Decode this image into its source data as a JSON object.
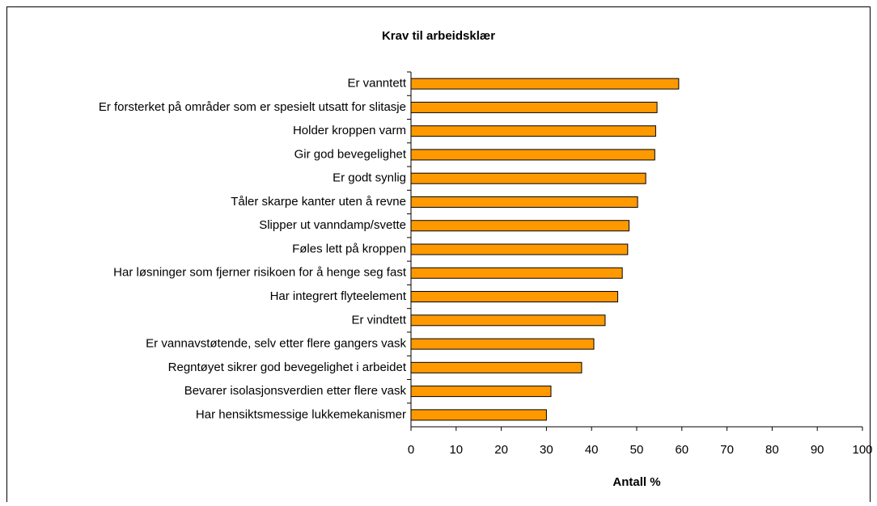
{
  "chart_data": {
    "type": "barh",
    "title": "Krav til arbeidsklær",
    "x_label": "Antall %",
    "categories": [
      "Er vanntett",
      "Er forsterket på områder som er spesielt utsatt for slitasje",
      "Holder kroppen varm",
      "Gir god bevegelighet",
      "Er godt synlig",
      "Tåler skarpe kanter uten å revne",
      "Slipper ut vanndamp/svette",
      "Føles lett på kroppen",
      "Har løsninger som fjerner risikoen for å henge seg fast",
      "Har integrert flyteelement",
      "Er vindtett",
      "Er vannavstøtende, selv etter flere gangers vask",
      "Regntøyet sikrer god bevegelighet i arbeidet",
      "Bevarer isolasjonsverdien etter flere vask",
      "Har hensiktsmessige lukkemekanismer"
    ],
    "values": [
      59.3,
      54.5,
      54.2,
      54,
      52,
      50.2,
      48.3,
      48,
      46.8,
      45.8,
      43,
      40.5,
      37.8,
      31,
      30
    ],
    "color": "#ff9900",
    "xlim": [
      0,
      100
    ],
    "xticks": [
      0,
      10,
      20,
      30,
      40,
      50,
      60,
      70,
      80,
      90,
      100
    ]
  }
}
